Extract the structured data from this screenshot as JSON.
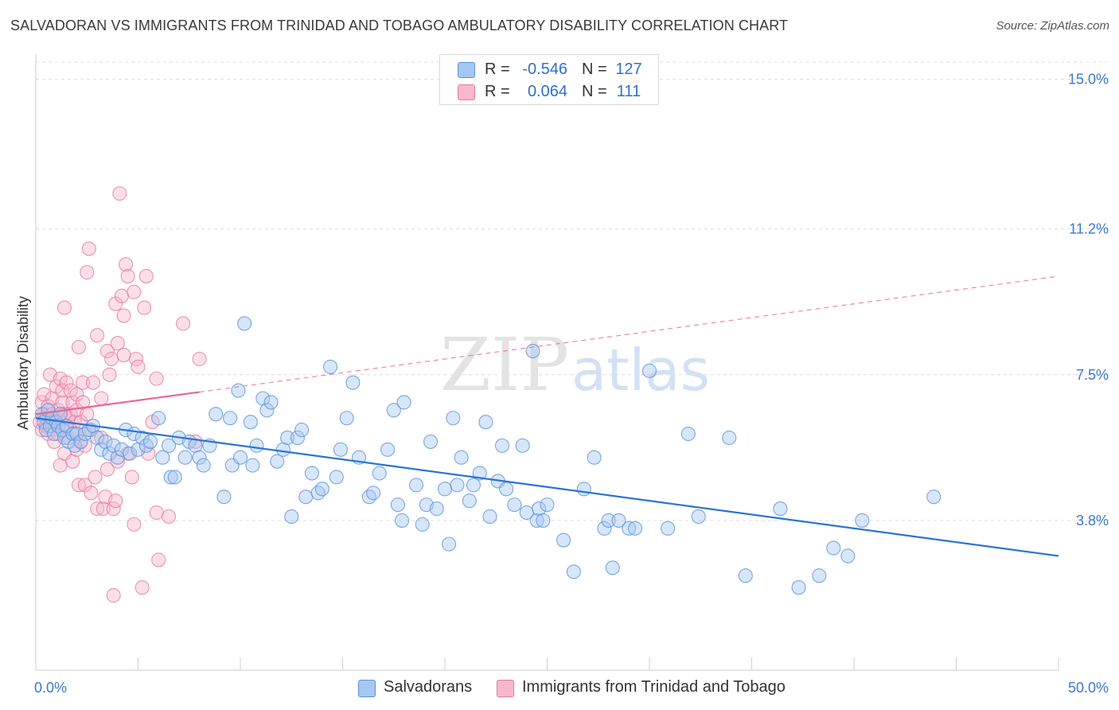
{
  "title": "SALVADORAN VS IMMIGRANTS FROM TRINIDAD AND TOBAGO AMBULATORY DISABILITY CORRELATION CHART",
  "source": "Source: ZipAtlas.com",
  "watermark": {
    "zip": "ZIP",
    "atlas": "atlas"
  },
  "colors": {
    "blue_fill": "#a7c7f2",
    "blue_stroke": "#5b93dc",
    "blue_line": "#2b74d6",
    "pink_fill": "#f7b8cb",
    "pink_stroke": "#e879a0",
    "pink_line": "#e86892",
    "axis_label": "#3b78d0",
    "grid": "#dcdcdc"
  },
  "legend": {
    "rows": [
      {
        "r_label": "R =",
        "r_value": "-0.546",
        "n_label": "N =",
        "n_value": "127"
      },
      {
        "r_label": "R =",
        "r_value": "0.064",
        "n_label": "N =",
        "n_value": "111"
      }
    ]
  },
  "bottom_legend": {
    "series1": "Salvadorans",
    "series2": "Immigrants from Trinidad and Tobago"
  },
  "chart_data": {
    "type": "scatter",
    "xlabel": "",
    "ylabel": "Ambulatory Disability",
    "xlim": [
      0,
      50
    ],
    "ylim": [
      0,
      15.8
    ],
    "x_tick_labels": [
      "0.0%",
      "50.0%"
    ],
    "y_ticks": [
      3.8,
      7.5,
      11.2,
      15.0
    ],
    "y_tick_labels": [
      "3.8%",
      "7.5%",
      "11.2%",
      "15.0%"
    ],
    "series": [
      {
        "name": "Salvadorans",
        "color": "blue",
        "trend": {
          "x": [
            0,
            50
          ],
          "y": [
            6.4,
            2.9
          ],
          "dashed_from": null
        },
        "points": [
          [
            0.3,
            6.5
          ],
          [
            0.4,
            6.3
          ],
          [
            0.5,
            6.1
          ],
          [
            0.6,
            6.6
          ],
          [
            0.7,
            6.2
          ],
          [
            0.8,
            6.4
          ],
          [
            0.9,
            6.0
          ],
          [
            1.0,
            6.3
          ],
          [
            1.1,
            6.2
          ],
          [
            1.2,
            6.5
          ],
          [
            1.3,
            6.1
          ],
          [
            1.4,
            5.9
          ],
          [
            1.5,
            6.2
          ],
          [
            1.6,
            5.8
          ],
          [
            1.8,
            6.0
          ],
          [
            1.9,
            5.7
          ],
          [
            2.0,
            6.0
          ],
          [
            2.2,
            5.8
          ],
          [
            2.4,
            6.0
          ],
          [
            2.6,
            6.1
          ],
          [
            2.8,
            6.2
          ],
          [
            3.0,
            5.9
          ],
          [
            3.2,
            5.6
          ],
          [
            3.4,
            5.8
          ],
          [
            3.6,
            5.5
          ],
          [
            3.8,
            5.7
          ],
          [
            4.0,
            5.4
          ],
          [
            4.2,
            5.6
          ],
          [
            4.4,
            6.1
          ],
          [
            4.6,
            5.5
          ],
          [
            4.8,
            6.0
          ],
          [
            5.0,
            5.6
          ],
          [
            5.2,
            5.9
          ],
          [
            5.4,
            5.7
          ],
          [
            5.6,
            5.8
          ],
          [
            6.0,
            6.4
          ],
          [
            6.2,
            5.4
          ],
          [
            6.5,
            5.7
          ],
          [
            6.6,
            4.9
          ],
          [
            6.8,
            4.9
          ],
          [
            7.0,
            5.9
          ],
          [
            7.3,
            5.4
          ],
          [
            7.5,
            5.8
          ],
          [
            7.8,
            5.7
          ],
          [
            8.0,
            5.4
          ],
          [
            8.2,
            5.2
          ],
          [
            8.5,
            5.7
          ],
          [
            8.8,
            6.5
          ],
          [
            9.2,
            4.4
          ],
          [
            9.5,
            6.4
          ],
          [
            9.6,
            5.2
          ],
          [
            9.9,
            7.1
          ],
          [
            10.0,
            5.4
          ],
          [
            10.2,
            8.8
          ],
          [
            10.5,
            6.3
          ],
          [
            10.6,
            5.2
          ],
          [
            10.8,
            5.7
          ],
          [
            11.1,
            6.9
          ],
          [
            11.3,
            6.6
          ],
          [
            11.5,
            6.8
          ],
          [
            11.8,
            5.3
          ],
          [
            12.1,
            5.6
          ],
          [
            12.3,
            5.9
          ],
          [
            12.5,
            3.9
          ],
          [
            12.8,
            5.9
          ],
          [
            13.0,
            6.1
          ],
          [
            13.2,
            4.4
          ],
          [
            13.5,
            5.0
          ],
          [
            13.8,
            4.5
          ],
          [
            14.0,
            4.6
          ],
          [
            14.4,
            7.7
          ],
          [
            14.7,
            4.9
          ],
          [
            14.9,
            5.6
          ],
          [
            15.2,
            6.4
          ],
          [
            15.5,
            7.3
          ],
          [
            15.8,
            5.4
          ],
          [
            16.3,
            4.4
          ],
          [
            16.5,
            4.5
          ],
          [
            16.8,
            5.0
          ],
          [
            17.2,
            5.6
          ],
          [
            17.5,
            6.6
          ],
          [
            17.7,
            4.2
          ],
          [
            17.9,
            3.8
          ],
          [
            18.0,
            6.8
          ],
          [
            18.6,
            4.7
          ],
          [
            18.9,
            3.7
          ],
          [
            19.1,
            4.2
          ],
          [
            19.3,
            5.8
          ],
          [
            19.6,
            4.1
          ],
          [
            20.0,
            4.6
          ],
          [
            20.2,
            3.2
          ],
          [
            20.4,
            6.4
          ],
          [
            20.6,
            4.7
          ],
          [
            20.8,
            5.4
          ],
          [
            21.2,
            4.3
          ],
          [
            21.4,
            4.7
          ],
          [
            21.7,
            5.0
          ],
          [
            22.0,
            6.3
          ],
          [
            22.2,
            3.9
          ],
          [
            22.6,
            4.8
          ],
          [
            22.8,
            5.7
          ],
          [
            23.0,
            4.6
          ],
          [
            23.4,
            4.2
          ],
          [
            23.8,
            5.7
          ],
          [
            24.0,
            4.0
          ],
          [
            24.3,
            8.1
          ],
          [
            24.5,
            3.8
          ],
          [
            24.6,
            4.1
          ],
          [
            24.8,
            3.8
          ],
          [
            25.0,
            4.2
          ],
          [
            25.8,
            3.3
          ],
          [
            26.3,
            2.5
          ],
          [
            26.8,
            4.6
          ],
          [
            27.3,
            5.4
          ],
          [
            27.8,
            3.6
          ],
          [
            28.0,
            3.8
          ],
          [
            28.2,
            2.6
          ],
          [
            28.5,
            3.8
          ],
          [
            29.0,
            3.6
          ],
          [
            29.3,
            3.6
          ],
          [
            30.0,
            7.6
          ],
          [
            30.9,
            3.6
          ],
          [
            31.9,
            6.0
          ],
          [
            32.4,
            3.9
          ],
          [
            33.9,
            5.9
          ],
          [
            34.7,
            2.4
          ],
          [
            36.4,
            4.1
          ],
          [
            37.3,
            2.1
          ],
          [
            38.3,
            2.4
          ],
          [
            39.0,
            3.1
          ],
          [
            39.7,
            2.9
          ],
          [
            40.4,
            3.8
          ],
          [
            43.9,
            4.4
          ]
        ]
      },
      {
        "name": "Immigrants from Trinidad and Tobago",
        "color": "pink",
        "trend": {
          "x": [
            0,
            50
          ],
          "y": [
            6.5,
            10.0
          ],
          "dashed_from": 8.0
        },
        "points": [
          [
            0.2,
            6.3
          ],
          [
            0.3,
            6.1
          ],
          [
            0.3,
            6.8
          ],
          [
            0.4,
            6.5
          ],
          [
            0.4,
            7.0
          ],
          [
            0.5,
            6.2
          ],
          [
            0.5,
            6.4
          ],
          [
            0.6,
            6.0
          ],
          [
            0.6,
            6.7
          ],
          [
            0.7,
            6.3
          ],
          [
            0.7,
            7.5
          ],
          [
            0.8,
            6.5
          ],
          [
            0.8,
            6.9
          ],
          [
            0.9,
            6.2
          ],
          [
            0.9,
            5.8
          ],
          [
            1.0,
            6.4
          ],
          [
            1.0,
            7.2
          ],
          [
            1.1,
            6.6
          ],
          [
            1.1,
            6.0
          ],
          [
            1.2,
            7.4
          ],
          [
            1.2,
            5.2
          ],
          [
            1.3,
            6.8
          ],
          [
            1.3,
            7.1
          ],
          [
            1.4,
            6.5
          ],
          [
            1.4,
            5.5
          ],
          [
            1.4,
            9.2
          ],
          [
            1.5,
            6.2
          ],
          [
            1.5,
            7.3
          ],
          [
            1.6,
            6.4
          ],
          [
            1.6,
            5.9
          ],
          [
            1.7,
            6.5
          ],
          [
            1.7,
            7.1
          ],
          [
            1.8,
            6.8
          ],
          [
            1.8,
            5.3
          ],
          [
            1.9,
            6.0
          ],
          [
            1.9,
            6.3
          ],
          [
            2.0,
            6.6
          ],
          [
            2.0,
            7.0
          ],
          [
            2.0,
            5.6
          ],
          [
            2.1,
            8.2
          ],
          [
            2.1,
            4.7
          ],
          [
            2.2,
            6.3
          ],
          [
            2.2,
            5.8
          ],
          [
            2.3,
            6.8
          ],
          [
            2.3,
            7.3
          ],
          [
            2.4,
            5.7
          ],
          [
            2.4,
            4.7
          ],
          [
            2.5,
            6.5
          ],
          [
            2.5,
            10.1
          ],
          [
            2.6,
            10.7
          ],
          [
            2.7,
            6.1
          ],
          [
            2.7,
            4.5
          ],
          [
            2.8,
            7.3
          ],
          [
            2.9,
            4.9
          ],
          [
            3.0,
            8.5
          ],
          [
            3.0,
            4.1
          ],
          [
            3.2,
            5.9
          ],
          [
            3.2,
            6.9
          ],
          [
            3.3,
            4.1
          ],
          [
            3.4,
            4.4
          ],
          [
            3.5,
            8.1
          ],
          [
            3.5,
            5.1
          ],
          [
            3.6,
            7.5
          ],
          [
            3.7,
            7.9
          ],
          [
            3.8,
            4.1
          ],
          [
            3.8,
            1.9
          ],
          [
            3.9,
            9.3
          ],
          [
            3.9,
            4.3
          ],
          [
            4.0,
            8.3
          ],
          [
            4.0,
            5.3
          ],
          [
            4.1,
            12.1
          ],
          [
            4.2,
            9.5
          ],
          [
            4.3,
            9.0
          ],
          [
            4.3,
            8.0
          ],
          [
            4.4,
            10.3
          ],
          [
            4.5,
            10.0
          ],
          [
            4.5,
            5.5
          ],
          [
            4.7,
            4.9
          ],
          [
            4.8,
            9.6
          ],
          [
            4.8,
            3.7
          ],
          [
            4.9,
            7.9
          ],
          [
            5.0,
            7.7
          ],
          [
            5.2,
            2.1
          ],
          [
            5.3,
            9.2
          ],
          [
            5.4,
            10.0
          ],
          [
            5.5,
            5.5
          ],
          [
            5.7,
            6.3
          ],
          [
            5.9,
            4.0
          ],
          [
            5.9,
            7.4
          ],
          [
            6.0,
            2.8
          ],
          [
            6.5,
            3.9
          ],
          [
            7.2,
            8.8
          ],
          [
            7.8,
            5.8
          ],
          [
            8.0,
            7.9
          ]
        ]
      }
    ]
  },
  "axes_labels": {
    "ylabel": "Ambulatory Disability"
  }
}
